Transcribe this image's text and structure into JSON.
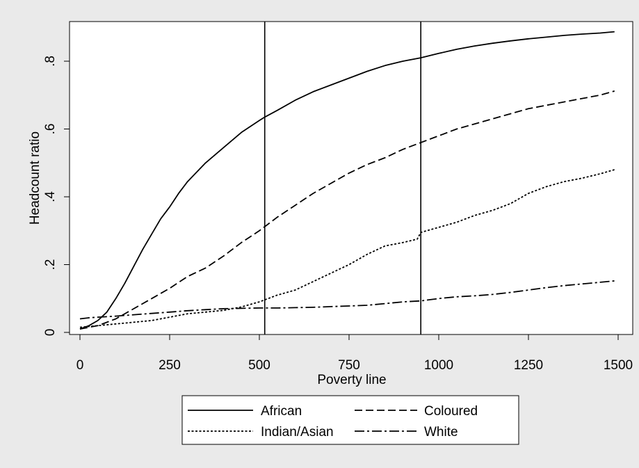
{
  "chart_data": {
    "type": "line",
    "title": "",
    "xlabel": "Poverty line",
    "ylabel": "Headcount ratio",
    "xlim": [
      0,
      1500
    ],
    "ylim": [
      0,
      0.9
    ],
    "x_ticks": [
      0,
      250,
      500,
      750,
      1000,
      1250,
      1500
    ],
    "x_tick_labels": [
      "0",
      "250",
      "500",
      "750",
      "1000",
      "1250",
      "1500"
    ],
    "y_ticks": [
      0,
      0.2,
      0.4,
      0.6,
      0.8
    ],
    "y_tick_labels": [
      "0",
      ".2",
      ".4",
      ".6",
      ".8"
    ],
    "grid": false,
    "legend_position": "bottom",
    "reference_lines_x": [
      515,
      950
    ],
    "series": [
      {
        "name": "African",
        "dash": "solid",
        "x": [
          0,
          25,
          50,
          75,
          100,
          125,
          150,
          175,
          200,
          225,
          250,
          275,
          300,
          350,
          400,
          450,
          500,
          515,
          550,
          600,
          650,
          700,
          750,
          800,
          850,
          900,
          950,
          1000,
          1050,
          1100,
          1150,
          1200,
          1250,
          1300,
          1350,
          1400,
          1450,
          1490
        ],
        "y": [
          0.01,
          0.02,
          0.035,
          0.06,
          0.1,
          0.145,
          0.195,
          0.245,
          0.29,
          0.335,
          0.37,
          0.41,
          0.445,
          0.5,
          0.545,
          0.59,
          0.625,
          0.635,
          0.655,
          0.685,
          0.71,
          0.73,
          0.75,
          0.77,
          0.787,
          0.8,
          0.81,
          0.823,
          0.835,
          0.845,
          0.853,
          0.86,
          0.866,
          0.871,
          0.876,
          0.88,
          0.883,
          0.887
        ]
      },
      {
        "name": "Coloured",
        "dash": "dashed",
        "x": [
          0,
          50,
          100,
          150,
          200,
          250,
          300,
          350,
          400,
          450,
          500,
          550,
          600,
          650,
          700,
          750,
          800,
          850,
          900,
          950,
          1000,
          1050,
          1100,
          1150,
          1200,
          1250,
          1300,
          1350,
          1400,
          1450,
          1490
        ],
        "y": [
          0.01,
          0.02,
          0.04,
          0.07,
          0.1,
          0.13,
          0.165,
          0.19,
          0.225,
          0.265,
          0.3,
          0.34,
          0.375,
          0.41,
          0.44,
          0.47,
          0.495,
          0.515,
          0.54,
          0.56,
          0.58,
          0.6,
          0.615,
          0.63,
          0.645,
          0.66,
          0.67,
          0.68,
          0.69,
          0.7,
          0.712
        ]
      },
      {
        "name": "Indian/Asian",
        "dash": "dotted",
        "x": [
          0,
          50,
          100,
          150,
          200,
          250,
          300,
          350,
          400,
          450,
          500,
          550,
          600,
          650,
          700,
          750,
          800,
          850,
          900,
          940,
          950,
          1000,
          1050,
          1100,
          1150,
          1200,
          1250,
          1300,
          1350,
          1400,
          1450,
          1490
        ],
        "y": [
          0.015,
          0.02,
          0.025,
          0.03,
          0.035,
          0.045,
          0.055,
          0.06,
          0.065,
          0.075,
          0.09,
          0.11,
          0.125,
          0.15,
          0.175,
          0.2,
          0.23,
          0.255,
          0.265,
          0.275,
          0.295,
          0.31,
          0.325,
          0.345,
          0.36,
          0.38,
          0.41,
          0.43,
          0.445,
          0.455,
          0.468,
          0.48
        ]
      },
      {
        "name": "White",
        "dash": "dashdot",
        "x": [
          0,
          25,
          50,
          100,
          150,
          200,
          250,
          300,
          350,
          400,
          450,
          500,
          550,
          600,
          650,
          700,
          750,
          800,
          850,
          900,
          950,
          1000,
          1050,
          1100,
          1150,
          1200,
          1250,
          1300,
          1350,
          1400,
          1450,
          1490
        ],
        "y": [
          0.04,
          0.043,
          0.045,
          0.048,
          0.052,
          0.056,
          0.06,
          0.064,
          0.067,
          0.07,
          0.071,
          0.072,
          0.072,
          0.073,
          0.074,
          0.076,
          0.078,
          0.08,
          0.085,
          0.09,
          0.093,
          0.1,
          0.105,
          0.108,
          0.112,
          0.118,
          0.125,
          0.132,
          0.138,
          0.143,
          0.148,
          0.152
        ]
      }
    ]
  }
}
